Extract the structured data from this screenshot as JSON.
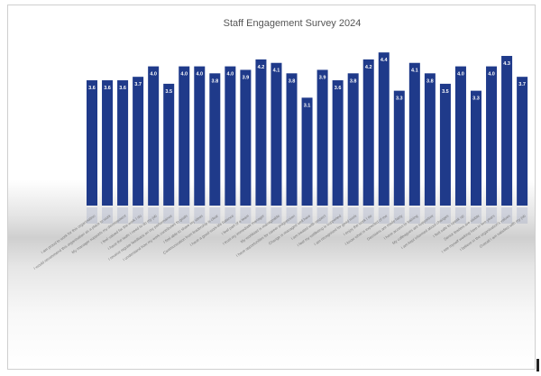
{
  "chart_data": {
    "type": "bar",
    "title": "Staff Engagement Survey 2024",
    "xlabel": "",
    "ylabel": "",
    "ylim": [
      0,
      4.4
    ],
    "grid": false,
    "bar_color": "#1f3a8a",
    "categories": [
      "I am proud to work for this organisation",
      "I would recommend this organisation as a place to work",
      "My manager supports my development",
      "I feel valued for the work I do",
      "I have the tools I need to do my job",
      "I receive regular feedback on my performance",
      "I understand how my work contributes to goals",
      "I feel able to share my ideas",
      "Communication from leadership is clear",
      "I have a good work-life balance",
      "I feel part of a team",
      "I trust my immediate manager",
      "My workload is manageable",
      "I have opportunities for career progression",
      "Change is managed well here",
      "I am treated with respect",
      "I feel my wellbeing is supported",
      "I am recognised for good work",
      "I enjoy the work I do",
      "I know what is expected of me",
      "Decisions are made fairly",
      "I have access to training",
      "My colleagues are supportive",
      "I am kept informed about changes",
      "I feel safe to speak up",
      "Senior leaders are visible",
      "I see myself working here in two years",
      "I believe in the organisation's values",
      "Overall I am satisfied with my job"
    ],
    "values": [
      3.6,
      3.6,
      3.6,
      3.7,
      4.0,
      3.5,
      4.0,
      4.0,
      3.8,
      4.0,
      3.9,
      4.2,
      4.1,
      3.8,
      3.1,
      3.9,
      3.6,
      3.8,
      4.2,
      4.4,
      3.3,
      4.1,
      3.8,
      3.5,
      4.0,
      3.3,
      4.0,
      4.3,
      3.7
    ],
    "value_labels": [
      "3.6",
      "3.6",
      "3.6",
      "3.7",
      "4.0",
      "3.5",
      "4.0",
      "4.0",
      "3.8",
      "4.0",
      "3.9",
      "4.2",
      "4.1",
      "3.8",
      "3.1",
      "3.9",
      "3.6",
      "3.8",
      "4.2",
      "4.4",
      "3.3",
      "4.1",
      "3.8",
      "3.5",
      "4.0",
      "3.3",
      "4.0",
      "4.3",
      "3.7"
    ]
  }
}
